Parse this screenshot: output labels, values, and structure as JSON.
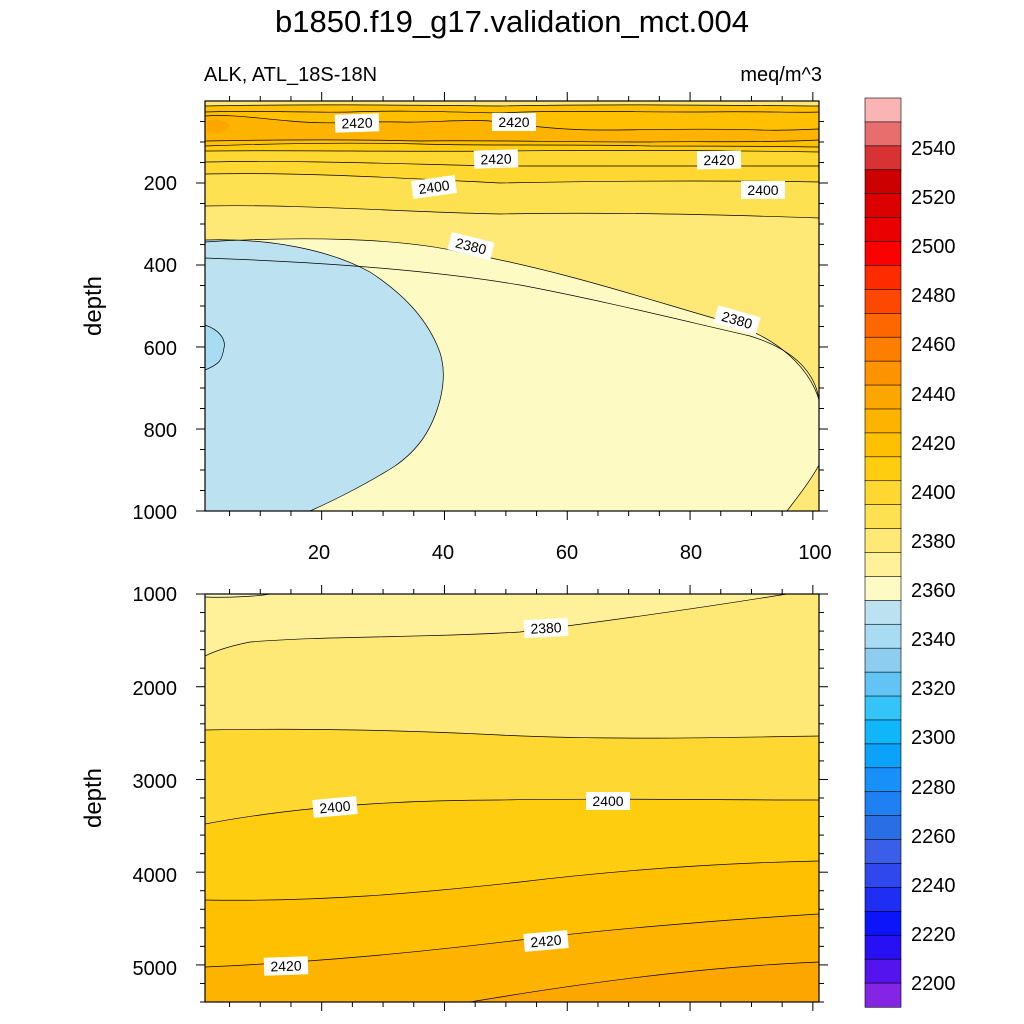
{
  "chart_data": {
    "type": "contour",
    "title": "b1850.f19_g17.validation_mct.004",
    "subtitle_left": "ALK, ATL_18S-18N",
    "subtitle_right": "meq/m^3",
    "ylabel": "depth",
    "x_ticks": [
      "20",
      "40",
      "60",
      "80",
      "100"
    ],
    "upper_panel": {
      "ylim": [
        0,
        1000
      ],
      "xlim": [
        1,
        101
      ],
      "y_ticks": [
        "200",
        "400",
        "600",
        "800",
        "1000"
      ],
      "contour_labels": [
        "2420",
        "2420",
        "2420",
        "2420",
        "2400",
        "2400",
        "2380",
        "2380"
      ]
    },
    "lower_panel": {
      "ylim": [
        1000,
        5400
      ],
      "xlim": [
        1,
        101
      ],
      "y_ticks": [
        "1000",
        "2000",
        "3000",
        "4000",
        "5000"
      ],
      "contour_labels": [
        "2380",
        "2400",
        "2400",
        "2420",
        "2420"
      ]
    },
    "colorbar": {
      "labels": [
        "2540",
        "2520",
        "2500",
        "2480",
        "2460",
        "2440",
        "2420",
        "2400",
        "2380",
        "2360",
        "2340",
        "2320",
        "2300",
        "2280",
        "2260",
        "2240",
        "2220",
        "2200"
      ],
      "colors_top_to_bottom": [
        "#fbb4b4",
        "#e86e6e",
        "#d83232",
        "#cc0000",
        "#dc0000",
        "#ea0000",
        "#fa0000",
        "#fe2a00",
        "#fe4800",
        "#fe6600",
        "#fe7e00",
        "#fe9300",
        "#fea600",
        "#feb300",
        "#fec000",
        "#fecd10",
        "#fed830",
        "#fee150",
        "#fee977",
        "#fef19a",
        "#fefac4",
        "#bce2f2",
        "#a8dcf2",
        "#8ccdf0",
        "#62c4f4",
        "#34c4fa",
        "#10b6fa",
        "#0ca2fa",
        "#1890fa",
        "#1e80f2",
        "#2a6ee6",
        "#3a5ee8",
        "#2e48ee",
        "#1e2ef2",
        "#0c14fa",
        "#2810f4",
        "#5414ee",
        "#8424e4"
      ]
    }
  }
}
